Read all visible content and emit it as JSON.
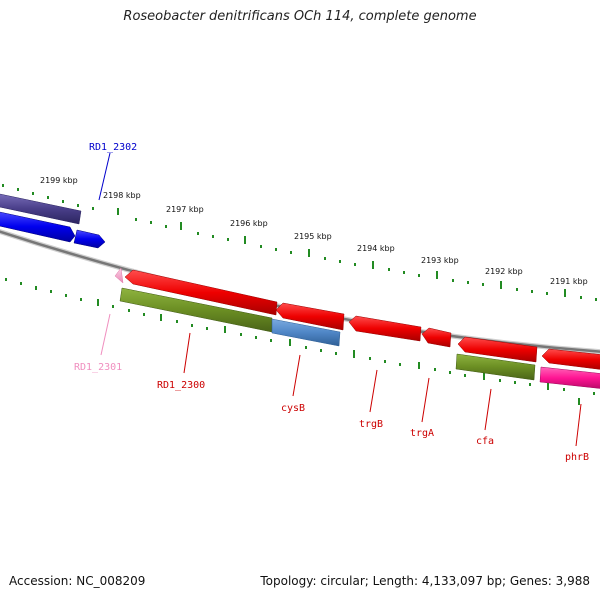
{
  "title": "Roseobacter denitrificans OCh 114, complete genome",
  "footer": {
    "accession": "Accession: NC_008209",
    "summary": "Topology: circular; Length: 4,133,097 bp; Genes: 3,988"
  },
  "ruler": {
    "unit": "kbp",
    "ticks": [
      "2199 kbp",
      "2198 kbp",
      "2197 kbp",
      "2196 kbp",
      "2195 kbp",
      "2194 kbp",
      "2193 kbp",
      "2192 kbp",
      "2191 kbp"
    ]
  },
  "genes": [
    {
      "name": "RD1_2302",
      "color": "#0000cc"
    },
    {
      "name": "RD1_2301",
      "color": "#f08fbf"
    },
    {
      "name": "RD1_2300",
      "color": "#cc0000"
    },
    {
      "name": "cysB",
      "color": "#cc0000"
    },
    {
      "name": "trgB",
      "color": "#cc0000"
    },
    {
      "name": "trgA",
      "color": "#cc0000"
    },
    {
      "name": "cfa",
      "color": "#cc0000"
    },
    {
      "name": "phrB",
      "color": "#cc0000"
    }
  ],
  "colors": {
    "forward_gene": "#ff0000",
    "blue_gene": "#0000ff",
    "purple_gene": "#4a3f8a",
    "olive_feature": "#6b8e23",
    "steel_feature": "#4f86c6",
    "magenta_gene": "#ff1493",
    "pink_gene": "#f4a6c8",
    "backbone": "#888888",
    "tick_green": "#228b22"
  }
}
